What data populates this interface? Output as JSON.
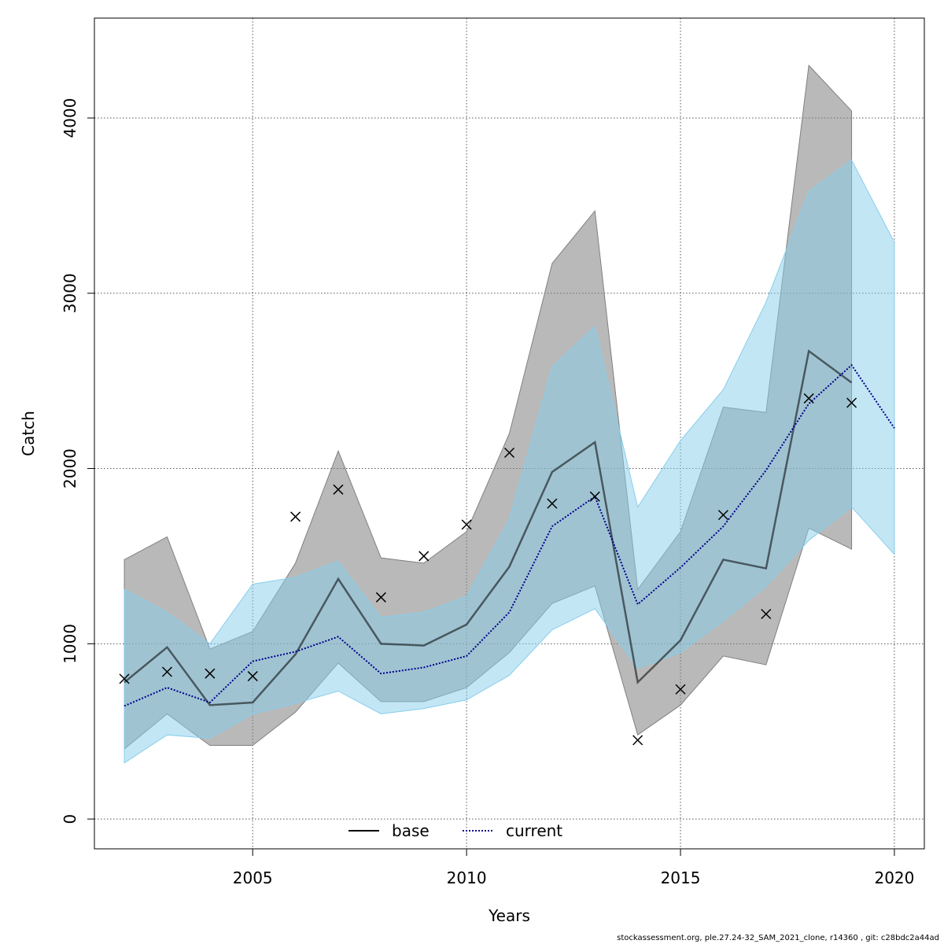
{
  "chart_data": {
    "type": "line",
    "xlabel": "Years",
    "ylabel": "Catch",
    "xlim": [
      2001.3,
      2020.7
    ],
    "ylim": [
      -170,
      4570
    ],
    "x_ticks": [
      2005,
      2010,
      2015,
      2020
    ],
    "y_ticks": [
      0,
      1000,
      2000,
      3000,
      4000
    ],
    "grid": true,
    "legend_position": "bottom-center",
    "series": [
      {
        "name": "base",
        "style": "solid",
        "color": "#000000",
        "band_color": "#808080",
        "x": [
          2002,
          2003,
          2004,
          2005,
          2006,
          2007,
          2008,
          2009,
          2010,
          2011,
          2012,
          2013,
          2014,
          2015,
          2016,
          2017,
          2018,
          2019
        ],
        "values": [
          780,
          980,
          650,
          665,
          940,
          1370,
          1000,
          990,
          1110,
          1440,
          1980,
          2150,
          780,
          1020,
          1480,
          1430,
          2670,
          2490
        ],
        "lower": [
          400,
          600,
          420,
          420,
          610,
          890,
          670,
          670,
          750,
          950,
          1230,
          1330,
          480,
          650,
          930,
          880,
          1660,
          1540
        ],
        "upper": [
          1480,
          1610,
          970,
          1070,
          1460,
          2100,
          1490,
          1460,
          1640,
          2200,
          3170,
          3470,
          1310,
          1640,
          2350,
          2320,
          4300,
          4040
        ]
      },
      {
        "name": "current",
        "style": "dotted",
        "color": "#00008b",
        "band_color": "#87ceeb",
        "x": [
          2002,
          2003,
          2004,
          2005,
          2006,
          2007,
          2008,
          2009,
          2010,
          2011,
          2012,
          2013,
          2014,
          2015,
          2016,
          2017,
          2018,
          2019,
          2020
        ],
        "values": [
          645,
          750,
          665,
          900,
          955,
          1040,
          830,
          865,
          930,
          1180,
          1670,
          1840,
          1225,
          1435,
          1670,
          1990,
          2370,
          2590,
          2230
        ],
        "lower": [
          320,
          480,
          460,
          600,
          660,
          730,
          600,
          630,
          680,
          820,
          1080,
          1200,
          860,
          950,
          1130,
          1330,
          1590,
          1780,
          1510
        ],
        "upper": [
          1310,
          1180,
          1000,
          1340,
          1380,
          1470,
          1150,
          1180,
          1270,
          1710,
          2580,
          2810,
          1780,
          2160,
          2450,
          2950,
          3580,
          3760,
          3290
        ]
      }
    ],
    "observations": {
      "marker": "x",
      "x": [
        2002,
        2003,
        2004,
        2005,
        2006,
        2007,
        2008,
        2009,
        2010,
        2011,
        2012,
        2013,
        2014,
        2015,
        2016,
        2017,
        2018,
        2019
      ],
      "values": [
        800,
        840,
        830,
        815,
        1725,
        1880,
        1265,
        1500,
        1680,
        2090,
        1800,
        1840,
        450,
        740,
        1735,
        1170,
        2400,
        2375
      ]
    }
  },
  "footer": "stockassessment.org, ple.27.24-32_SAM_2021_clone, r14360 , git: c28bdc2a44ad"
}
